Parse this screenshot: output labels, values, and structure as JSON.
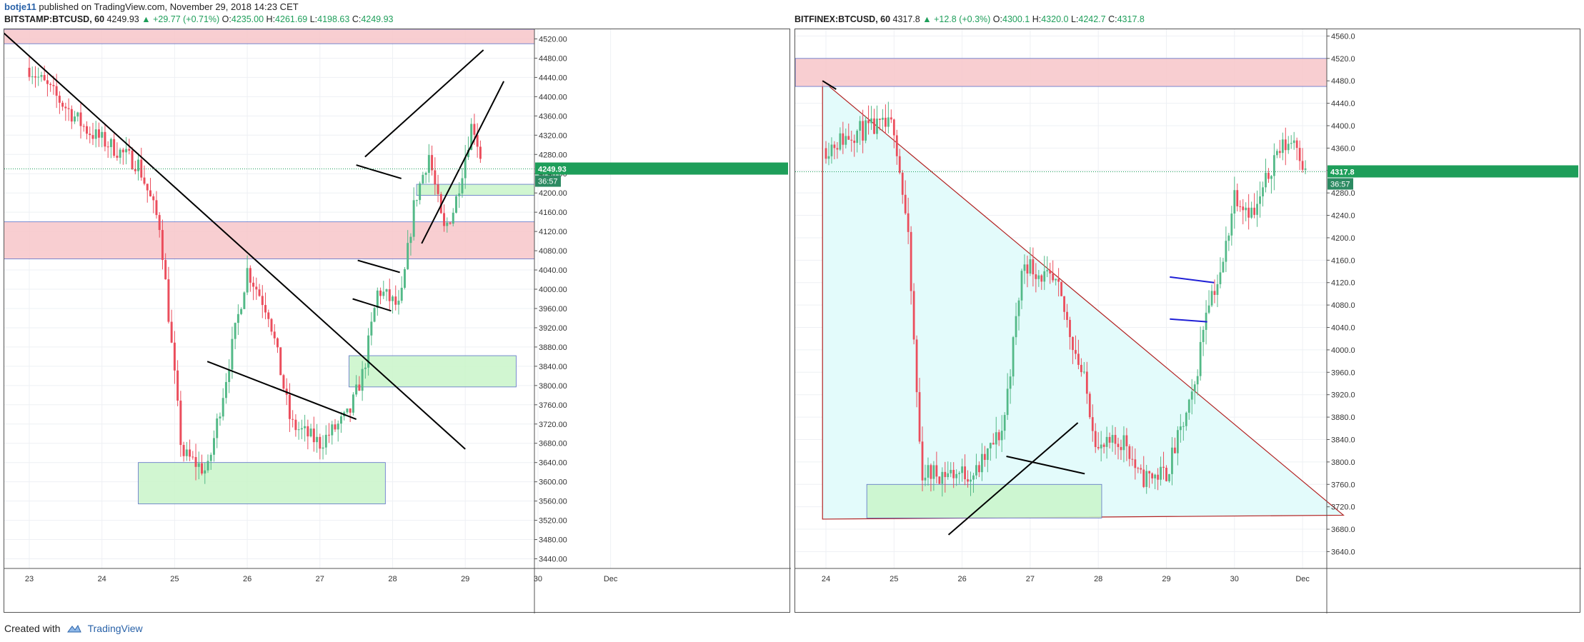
{
  "header": {
    "author": "botje11",
    "published_text": "published on TradingView.com, November 29, 2018 14:23 CET"
  },
  "footer": {
    "created_with": "Created with",
    "brand": "TradingView"
  },
  "colors": {
    "up": "#53b987",
    "down": "#eb4d5c",
    "resistance_zone": "#f7c6c9",
    "support_zone": "#c9f5c9",
    "triangle_fill": "#e3fbfb",
    "triangle_stroke": "#b22222",
    "price_line": "#1e9e5a",
    "trendline": "#000000",
    "blue_line": "#1f1fd6"
  },
  "chart_data": [
    {
      "type": "candlestick",
      "symbol": "BITSTAMP:BTCUSD, 60",
      "ohlc_label": {
        "last": "4249.93",
        "change": "▲ +29.77 (+0.71%)",
        "o": "4235.00",
        "h": "4261.69",
        "l": "4198.63",
        "c": "4249.93"
      },
      "y_ticks": [
        "4520.00",
        "4480.00",
        "4440.00",
        "4400.00",
        "4360.00",
        "4320.00",
        "4280.00",
        "4240.00",
        "4200.00",
        "4160.00",
        "4120.00",
        "4080.00",
        "4040.00",
        "4000.00",
        "3960.00",
        "3920.00",
        "3880.00",
        "3840.00",
        "3800.00",
        "3760.00",
        "3720.00",
        "3680.00",
        "3640.00",
        "3600.00",
        "3560.00",
        "3520.00",
        "3480.00",
        "3440.00"
      ],
      "ylim": [
        3420,
        4540
      ],
      "x_ticks": [
        "23",
        "24",
        "25",
        "26",
        "27",
        "28",
        "29",
        "30",
        "Dec"
      ],
      "last_price_tag": "4249.93",
      "countdown_tag": "36:57",
      "last_price": 4249.93,
      "key_prices": [
        [
          0,
          4460
        ],
        [
          0.8,
          4330
        ],
        [
          1.5,
          4260
        ],
        [
          1.8,
          4130
        ],
        [
          2.1,
          3660
        ],
        [
          2.45,
          3620
        ],
        [
          3.0,
          4040
        ],
        [
          3.3,
          3950
        ],
        [
          3.6,
          3720
        ],
        [
          4.0,
          3680
        ],
        [
          4.4,
          3740
        ],
        [
          4.6,
          3830
        ],
        [
          4.8,
          4000
        ],
        [
          5.1,
          3960
        ],
        [
          5.3,
          4180
        ],
        [
          5.5,
          4280
        ],
        [
          5.7,
          4120
        ],
        [
          5.85,
          4170
        ],
        [
          6.1,
          4350
        ],
        [
          6.25,
          4250
        ]
      ],
      "zones": [
        {
          "kind": "resistance",
          "x0": -0.35,
          "x1": 7.3,
          "y0": 4510,
          "y1": 4540
        },
        {
          "kind": "resistance",
          "x0": -0.35,
          "x1": 7.3,
          "y0": 4063,
          "y1": 4140
        },
        {
          "kind": "support",
          "x0": 5.33,
          "x1": 7.3,
          "y0": 4195,
          "y1": 4218
        },
        {
          "kind": "support",
          "x0": 4.4,
          "x1": 6.7,
          "y0": 3797,
          "y1": 3862
        },
        {
          "kind": "support",
          "x0": 1.5,
          "x1": 4.9,
          "y0": 3554,
          "y1": 3640
        }
      ],
      "trendlines": [
        [
          -0.35,
          4532,
          6.0,
          3668
        ],
        [
          2.45,
          3850,
          4.5,
          3730
        ],
        [
          4.5,
          4258,
          5.12,
          4230
        ],
        [
          4.52,
          4060,
          5.1,
          4035
        ],
        [
          4.45,
          3980,
          4.98,
          3955
        ],
        [
          4.62,
          4275,
          6.25,
          4497
        ],
        [
          5.4,
          4095,
          6.53,
          4432
        ]
      ]
    },
    {
      "type": "candlestick",
      "symbol": "BITFINEX:BTCUSD, 60",
      "ohlc_label": {
        "last": "4317.8",
        "change": "▲ +12.8 (+0.3%)",
        "o": "4300.1",
        "h": "4320.0",
        "l": "4242.7",
        "c": "4317.8"
      },
      "y_ticks": [
        "4560.0",
        "4520.0",
        "4480.0",
        "4440.0",
        "4400.0",
        "4360.0",
        "4320.0",
        "4280.0",
        "4240.0",
        "4200.0",
        "4160.0",
        "4120.0",
        "4080.0",
        "4040.0",
        "4000.0",
        "3960.0",
        "3920.0",
        "3880.0",
        "3840.0",
        "3800.0",
        "3760.0",
        "3720.0",
        "3680.0",
        "3640.0"
      ],
      "ylim": [
        3610,
        4572
      ],
      "x_ticks": [
        "24",
        "25",
        "26",
        "27",
        "28",
        "29",
        "30",
        "Dec"
      ],
      "last_price_tag": "4317.8",
      "countdown_tag": "36:57",
      "last_price": 4317.8,
      "key_prices": [
        [
          0,
          4360
        ],
        [
          0.45,
          4390
        ],
        [
          1.0,
          4400
        ],
        [
          1.2,
          4210
        ],
        [
          1.4,
          3780
        ],
        [
          2.2,
          3780
        ],
        [
          2.6,
          3860
        ],
        [
          2.9,
          4160
        ],
        [
          3.4,
          4110
        ],
        [
          3.8,
          3940
        ],
        [
          4.0,
          3820
        ],
        [
          4.4,
          3840
        ],
        [
          4.6,
          3770
        ],
        [
          5.0,
          3780
        ],
        [
          5.4,
          3920
        ],
        [
          5.6,
          4090
        ],
        [
          5.8,
          4130
        ],
        [
          6.0,
          4280
        ],
        [
          6.3,
          4240
        ],
        [
          6.6,
          4350
        ],
        [
          6.9,
          4380
        ],
        [
          7.05,
          4310
        ]
      ],
      "zones": [
        {
          "kind": "resistance",
          "x0": -0.45,
          "x1": 7.75,
          "y0": 4470,
          "y1": 4520
        },
        {
          "kind": "support",
          "x0": 0.6,
          "x1": 4.05,
          "y0": 3700,
          "y1": 3760
        }
      ],
      "triangle": [
        [
          -0.05,
          3698
        ],
        [
          -0.05,
          4480
        ],
        [
          7.6,
          3705
        ]
      ],
      "trendlines": [
        [
          -0.05,
          4480,
          0.15,
          4465
        ],
        [
          2.65,
          3810,
          3.8,
          3779
        ],
        [
          1.8,
          3670,
          3.7,
          3870
        ]
      ],
      "blue_lines": [
        [
          5.05,
          4130,
          5.7,
          4120
        ],
        [
          5.05,
          4055,
          5.6,
          4050
        ]
      ]
    }
  ]
}
